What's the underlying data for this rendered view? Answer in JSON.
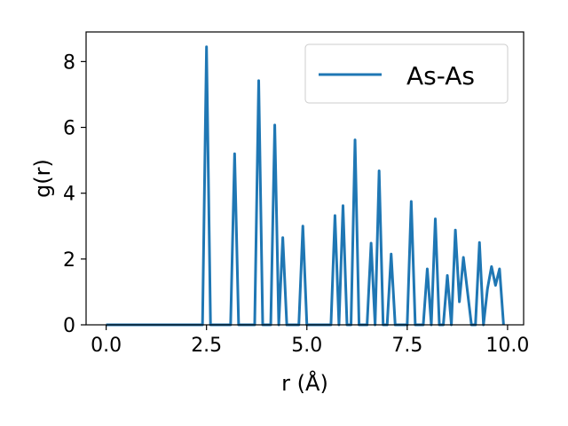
{
  "chart_data": {
    "type": "line",
    "title": "",
    "xlabel": "r (Å)",
    "ylabel": "g(r)",
    "xlim": [
      -0.5,
      10.4
    ],
    "ylim": [
      0,
      8.9
    ],
    "xticks": [
      0.0,
      2.5,
      5.0,
      7.5,
      10.0
    ],
    "xtick_labels": [
      "0.0",
      "2.5",
      "5.0",
      "7.5",
      "10.0"
    ],
    "yticks": [
      0,
      2,
      4,
      6,
      8
    ],
    "ytick_labels": [
      "0",
      "2",
      "4",
      "6",
      "8"
    ],
    "grid": false,
    "legend": {
      "position": "top-right",
      "entries": [
        "As-As"
      ]
    },
    "series": [
      {
        "name": "As-As",
        "color": "#1f77b4",
        "x": [
          0.0,
          2.4,
          2.5,
          2.6,
          3.1,
          3.2,
          3.3,
          3.7,
          3.8,
          3.9,
          4.1,
          4.2,
          4.3,
          4.4,
          4.5,
          4.6,
          4.8,
          4.9,
          5.0,
          5.6,
          5.7,
          5.8,
          5.9,
          6.0,
          6.1,
          6.2,
          6.3,
          6.5,
          6.6,
          6.7,
          6.8,
          6.9,
          7.0,
          7.1,
          7.2,
          7.5,
          7.6,
          7.7,
          7.9,
          8.0,
          8.1,
          8.2,
          8.3,
          8.4,
          8.5,
          8.6,
          8.7,
          8.8,
          8.9,
          9.1,
          9.2,
          9.3,
          9.4,
          9.5,
          9.6,
          9.7,
          9.8,
          9.9
        ],
        "y": [
          0,
          0,
          8.45,
          0,
          0,
          5.2,
          0,
          0,
          7.42,
          0,
          0,
          6.07,
          0,
          2.65,
          0,
          0,
          0,
          3.0,
          0,
          0,
          3.32,
          0,
          3.62,
          0,
          0,
          5.62,
          0,
          0,
          2.48,
          0,
          4.68,
          0,
          0,
          2.15,
          0,
          0,
          3.75,
          0,
          0,
          1.7,
          0,
          3.22,
          0,
          0,
          1.5,
          0,
          2.88,
          0.7,
          2.05,
          0,
          0,
          2.5,
          0,
          1.1,
          1.77,
          1.2,
          1.7,
          0
        ]
      }
    ]
  }
}
